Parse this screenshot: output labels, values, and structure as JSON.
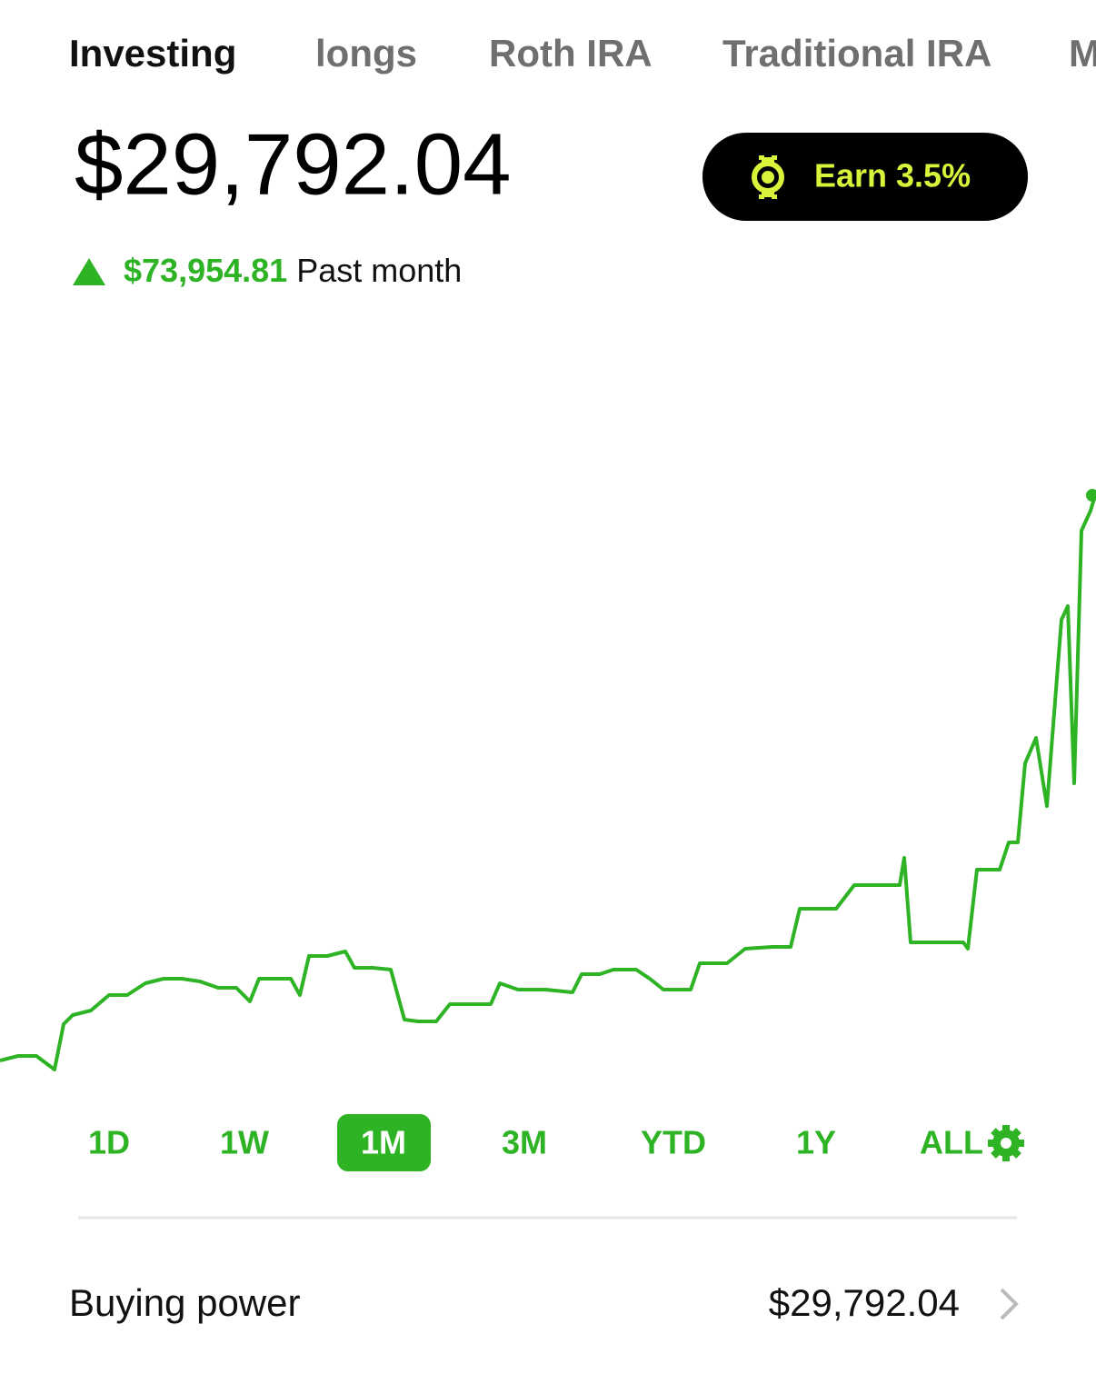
{
  "tabs": [
    "Investing",
    "longs",
    "Roth IRA",
    "Traditional IRA",
    "M"
  ],
  "active_tab_index": 0,
  "balance": "$29,792.04",
  "earn_button": "Earn 3.5%",
  "change": {
    "amount": "$73,954.81",
    "period": "Past month"
  },
  "chart_data": {
    "type": "line",
    "color": "#2db324",
    "x": [
      0,
      20,
      40,
      60,
      70,
      80,
      100,
      120,
      140,
      160,
      180,
      200,
      220,
      240,
      260,
      275,
      285,
      300,
      320,
      330,
      340,
      360,
      380,
      390,
      410,
      430,
      445,
      460,
      480,
      495,
      520,
      540,
      550,
      570,
      600,
      630,
      640,
      660,
      675,
      700,
      715,
      730,
      760,
      770,
      800,
      820,
      850,
      870,
      880,
      920,
      940,
      970,
      990,
      995,
      1002,
      1030,
      1060,
      1065,
      1075,
      1100,
      1110,
      1120,
      1128,
      1140,
      1152,
      1168,
      1175,
      1182,
      1190,
      1200,
      1206
    ],
    "values": [
      15,
      20,
      20,
      5,
      55,
      65,
      70,
      87,
      87,
      100,
      105,
      105,
      102,
      95,
      95,
      80,
      105,
      105,
      105,
      87,
      130,
      130,
      135,
      117,
      117,
      115,
      60,
      58,
      58,
      77,
      77,
      77,
      100,
      93,
      93,
      90,
      110,
      110,
      115,
      115,
      105,
      93,
      93,
      122,
      122,
      138,
      140,
      140,
      182,
      182,
      208,
      208,
      208,
      238,
      145,
      145,
      145,
      138,
      225,
      225,
      255,
      255,
      342,
      370,
      295,
      500,
      515,
      320,
      598,
      620,
      640
    ],
    "xlim": [
      0,
      1206
    ],
    "ylim": [
      0,
      640
    ]
  },
  "ranges": [
    "1D",
    "1W",
    "1M",
    "3M",
    "YTD",
    "1Y",
    "ALL"
  ],
  "selected_range_index": 2,
  "buying_power": {
    "label": "Buying power",
    "value": "$29,792.04"
  }
}
